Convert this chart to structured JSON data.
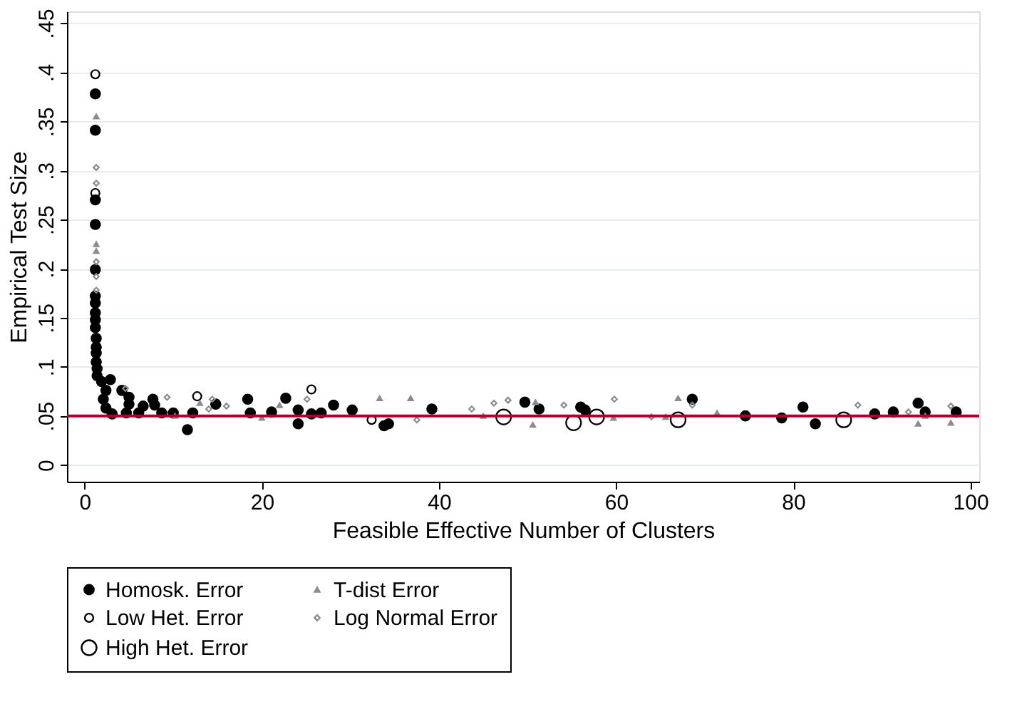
{
  "chart_data": {
    "type": "scatter",
    "xlabel": "Feasible Effective Number of Clusters",
    "ylabel": "Empirical Test Size",
    "xlim": [
      -2,
      101
    ],
    "xticks": [
      0,
      20,
      40,
      60,
      80,
      100
    ],
    "ylim": [
      -0.017,
      0.462
    ],
    "yticks": [
      {
        "value": 0,
        "label": "0"
      },
      {
        "value": 0.05,
        "label": ".05"
      },
      {
        "value": 0.1,
        "label": ".1"
      },
      {
        "value": 0.15,
        "label": ".15"
      },
      {
        "value": 0.2,
        "label": ".2"
      },
      {
        "value": 0.25,
        "label": ".25"
      },
      {
        "value": 0.3,
        "label": ".3"
      },
      {
        "value": 0.35,
        "label": ".35"
      },
      {
        "value": 0.4,
        "label": ".4"
      },
      {
        "value": 0.45,
        "label": ".45"
      }
    ],
    "grid": "y",
    "legend": "bottom",
    "ref_lines": [
      {
        "axis": "y",
        "value": 0.05,
        "label": null,
        "color": "#b0002e"
      }
    ],
    "series": [
      {
        "name": "Homosk. Error",
        "color": "#000000",
        "marker": "circle",
        "x": [
          1.2,
          1.2,
          1.2,
          1.2,
          1.2,
          1.2,
          1.2,
          1.2,
          1.2,
          1.2,
          1.3,
          1.3,
          1.3,
          1.3,
          1.4,
          1.4,
          1.9,
          2.4,
          2.9,
          2.1,
          2.4,
          3.1,
          4.2,
          5.0,
          5.0,
          4.7,
          6.1,
          6.6,
          7.7,
          7.9,
          8.7,
          10,
          11.6,
          12.2,
          14.8,
          18.4,
          18.7,
          21.1,
          22.7,
          24.1,
          24.1,
          25.6,
          26.7,
          28.1,
          30.2,
          33.8,
          34.3,
          39.2,
          49.7,
          51.3,
          56.0,
          56.5,
          68.6,
          74.6,
          78.7,
          81.1,
          82.5,
          89.2,
          91.3,
          94.1,
          94.9,
          98.4
        ],
        "values": [
          0.378,
          0.341,
          0.27,
          0.245,
          0.199,
          0.172,
          0.165,
          0.155,
          0.148,
          0.14,
          0.129,
          0.12,
          0.114,
          0.105,
          0.098,
          0.091,
          0.085,
          0.076,
          0.087,
          0.067,
          0.058,
          0.052,
          0.076,
          0.069,
          0.062,
          0.053,
          0.053,
          0.06,
          0.067,
          0.061,
          0.053,
          0.053,
          0.036,
          0.053,
          0.062,
          0.067,
          0.053,
          0.054,
          0.068,
          0.056,
          0.042,
          0.052,
          0.053,
          0.061,
          0.056,
          0.04,
          0.042,
          0.057,
          0.064,
          0.057,
          0.059,
          0.056,
          0.067,
          0.05,
          0.048,
          0.059,
          0.042,
          0.052,
          0.054,
          0.063,
          0.054,
          0.054
        ]
      },
      {
        "name": "Low Het. Error",
        "color": "#000000",
        "marker": "circle",
        "x": [
          1.2,
          1.2,
          12.7,
          25.6,
          32.4
        ],
        "values": [
          0.398,
          0.277,
          0.07,
          0.077,
          0.046
        ]
      },
      {
        "name": "High Het. Error",
        "color": "#000000",
        "marker": "circle",
        "x": [
          47.3,
          55.2,
          57.8,
          67.0,
          85.7
        ],
        "values": [
          0.049,
          0.043,
          0.049,
          0.046,
          0.046
        ]
      },
      {
        "name": "T-dist Error",
        "color": "#8c8c8c",
        "marker": "triangle",
        "x": [
          1.3,
          1.3,
          1.3,
          10.2,
          13.0,
          20,
          22,
          33.3,
          36.8,
          45,
          50.6,
          50.9,
          59.7,
          65.6,
          67,
          71.4,
          94.1,
          94.9,
          97.8
        ],
        "values": [
          0.355,
          0.225,
          0.218,
          0.05,
          0.063,
          0.048,
          0.061,
          0.068,
          0.068,
          0.05,
          0.041,
          0.064,
          0.048,
          0.049,
          0.068,
          0.053,
          0.042,
          0.05,
          0.043
        ]
      },
      {
        "name": "Log Normal Error",
        "color": "#8c8c8c",
        "marker": "diamond",
        "x": [
          1.3,
          1.3,
          1.3,
          1.3,
          1.3,
          4.6,
          9.3,
          14,
          14.4,
          16,
          25.1,
          37.5,
          43.7,
          46.2,
          47.8,
          54.1,
          59.8,
          64,
          68.6,
          87.3,
          93,
          97.8
        ],
        "values": [
          0.303,
          0.287,
          0.207,
          0.192,
          0.178,
          0.078,
          0.069,
          0.057,
          0.067,
          0.06,
          0.067,
          0.046,
          0.057,
          0.063,
          0.066,
          0.061,
          0.067,
          0.049,
          0.061,
          0.061,
          0.054,
          0.06
        ]
      }
    ]
  }
}
